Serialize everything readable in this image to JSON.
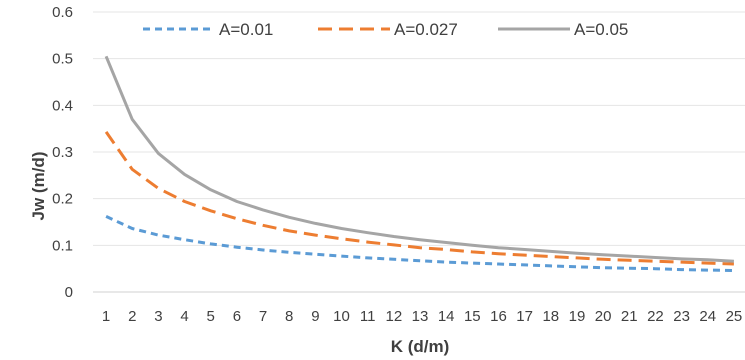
{
  "chart_data": {
    "type": "line",
    "xlabel": "K (d/m)",
    "ylabel": "Jw (m/d)",
    "ylim": [
      0,
      0.6
    ],
    "yticks": [
      "0",
      "0.1",
      "0.2",
      "0.3",
      "0.4",
      "0.5",
      "0.6"
    ],
    "x": [
      1,
      2,
      3,
      4,
      5,
      6,
      7,
      8,
      9,
      10,
      11,
      12,
      13,
      14,
      15,
      16,
      17,
      18,
      19,
      20,
      21,
      22,
      23,
      24,
      25
    ],
    "grid": true,
    "legend": "top",
    "series": [
      {
        "name": "A=0.01",
        "color": "#5B9BD5",
        "dash": "short-dash",
        "values": [
          0.162,
          0.136,
          0.122,
          0.112,
          0.103,
          0.096,
          0.09,
          0.085,
          0.081,
          0.077,
          0.073,
          0.07,
          0.067,
          0.064,
          0.062,
          0.06,
          0.058,
          0.056,
          0.054,
          0.052,
          0.051,
          0.05,
          0.048,
          0.047,
          0.046
        ]
      },
      {
        "name": "A=0.027",
        "color": "#ED7D31",
        "dash": "long-dash",
        "values": [
          0.343,
          0.263,
          0.222,
          0.194,
          0.174,
          0.157,
          0.143,
          0.131,
          0.122,
          0.114,
          0.107,
          0.101,
          0.095,
          0.091,
          0.086,
          0.082,
          0.079,
          0.076,
          0.073,
          0.07,
          0.068,
          0.066,
          0.064,
          0.062,
          0.06
        ]
      },
      {
        "name": "A=0.05",
        "color": "#A5A5A5",
        "dash": "solid",
        "values": [
          0.505,
          0.37,
          0.297,
          0.252,
          0.219,
          0.194,
          0.176,
          0.16,
          0.147,
          0.136,
          0.127,
          0.119,
          0.112,
          0.106,
          0.1,
          0.095,
          0.091,
          0.087,
          0.083,
          0.08,
          0.077,
          0.074,
          0.071,
          0.069,
          0.066
        ]
      }
    ]
  }
}
